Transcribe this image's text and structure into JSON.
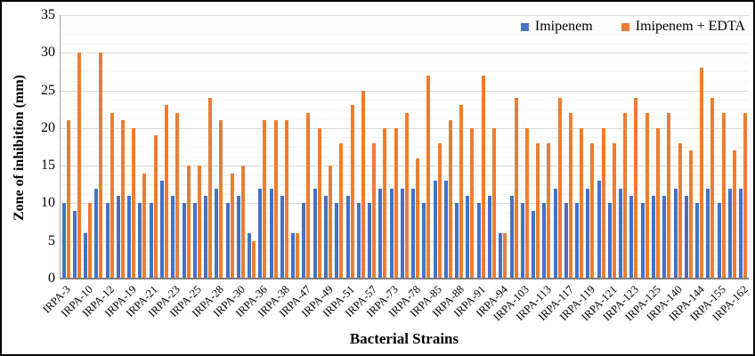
{
  "figure": {
    "background": "#ffffff",
    "border_color": "#000000"
  },
  "chart_data": {
    "type": "bar",
    "title": "",
    "xlabel": "Bacterial Strains",
    "ylabel": "Zone of inhibition (mm)",
    "ylim": [
      0,
      35
    ],
    "yticks": [
      0,
      5,
      10,
      15,
      20,
      25,
      30,
      35
    ],
    "minor_gridline_step": 1.25,
    "grid": "horizontal major (#d9d9d9) and minor (#f2f2f2) gridlines",
    "legend_position": "top-right-inside",
    "axis_colors": {
      "y_axis_line": "#a6a6a6",
      "x_axis_line": "#7f7f7f"
    },
    "note_unlabeled_categories": "63 bar pairs; every second category carries a strain label, intermediate categories are unlabeled in the image",
    "categories": [
      "IRPA-3",
      "",
      "IRPA-10",
      "",
      "IRPA-12",
      "",
      "IRPA-19",
      "",
      "IRPA-21",
      "",
      "IRPA-23",
      "",
      "IRPA-25",
      "",
      "IRPA-28",
      "",
      "IRPA-30",
      "",
      "IRPA-36",
      "",
      "IRPA-38",
      "",
      "IRPA-47",
      "",
      "IRPA-49",
      "",
      "IRPA-51",
      "",
      "IRPA-57",
      "",
      "IRPA-73",
      "",
      "IRPA-78",
      "",
      "IRPA-85",
      "",
      "IRPA-88",
      "",
      "IRPA-91",
      "",
      "IRPA-94",
      "",
      "IRPA-103",
      "",
      "IRPA-113",
      "",
      "IRPA-117",
      "",
      "IRPA-119",
      "",
      "IRPA-121",
      "",
      "IRPA-123",
      "",
      "IRPA-125",
      "",
      "IRPA-140",
      "",
      "IRPA-144",
      "",
      "IRPA-155",
      "",
      "IRPA-162"
    ],
    "series": [
      {
        "name": "Imipenem",
        "color": "#4472C4",
        "values": [
          10,
          9,
          6,
          12,
          10,
          11,
          11,
          10,
          10,
          13,
          11,
          10,
          10,
          11,
          12,
          10,
          11,
          6,
          12,
          12,
          11,
          6,
          10,
          12,
          11,
          10,
          11,
          10,
          10,
          12,
          12,
          12,
          12,
          10,
          13,
          13,
          10,
          11,
          10,
          11,
          6,
          11,
          10,
          9,
          10,
          12,
          10,
          10,
          12,
          13,
          10,
          12,
          11,
          10,
          11,
          11,
          12,
          11,
          10,
          12,
          10,
          12,
          12
        ]
      },
      {
        "name": "Imipenem + EDTA",
        "color": "#ED7D31",
        "values": [
          21,
          30,
          10,
          30,
          22,
          21,
          20,
          14,
          19,
          23,
          22,
          15,
          15,
          24,
          21,
          14,
          15,
          5,
          21,
          21,
          21,
          6,
          22,
          20,
          15,
          18,
          23,
          25,
          18,
          20,
          20,
          22,
          16,
          27,
          18,
          21,
          23,
          20,
          27,
          20,
          6,
          24,
          20,
          18,
          18,
          24,
          22,
          20,
          18,
          20,
          18,
          22,
          24,
          22,
          20,
          22,
          18,
          17,
          28,
          24,
          22,
          17,
          22
        ]
      }
    ]
  }
}
